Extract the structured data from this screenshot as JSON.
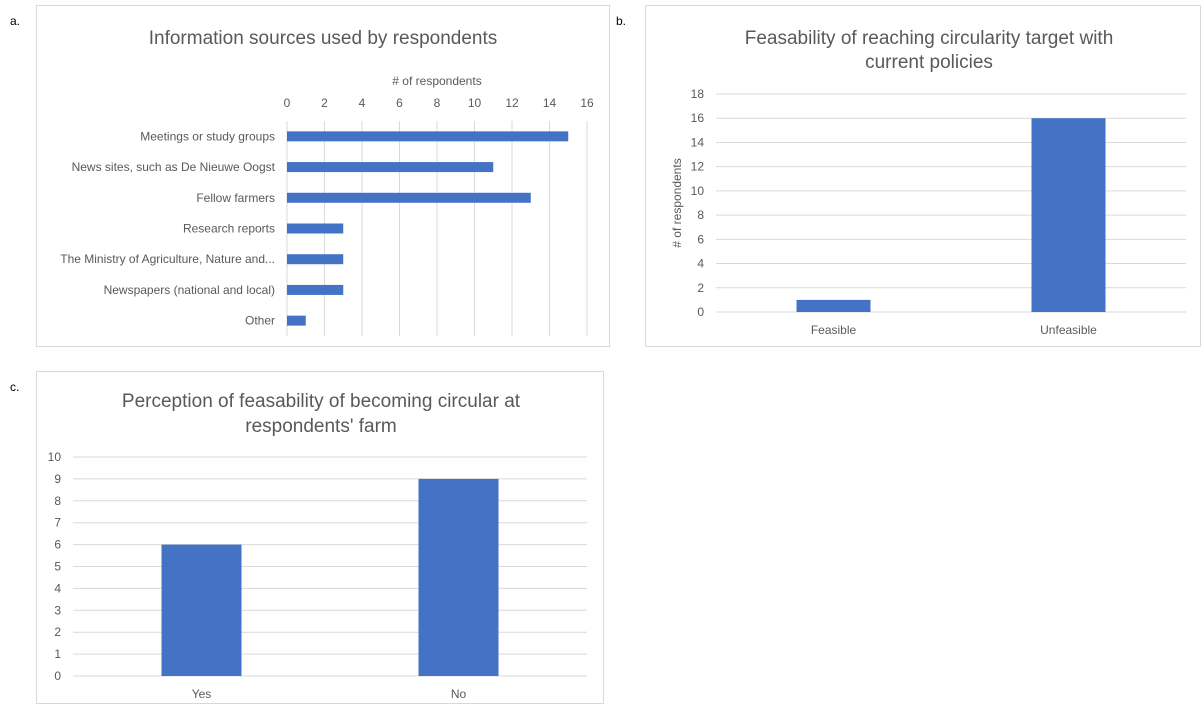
{
  "panels": {
    "a": {
      "label": "a."
    },
    "b": {
      "label": "b."
    },
    "c": {
      "label": "c."
    }
  },
  "colors": {
    "bar": "#4472c4",
    "grid": "#d9d9d9",
    "frame": "#d9d9d9",
    "text": "#595959"
  },
  "chart_data": [
    {
      "type": "bar",
      "orientation": "horizontal",
      "title": "Information sources used by respondents",
      "xlabel": "# of respondents",
      "ylabel": "",
      "xaxis_position": "top",
      "categories": [
        "Meetings or study groups",
        "News sites, such as De Nieuwe Oogst",
        "Fellow farmers",
        "Research reports",
        "The Ministry of Agriculture, Nature and...",
        "Newspapers (national and local)",
        "Other"
      ],
      "values": [
        15,
        11,
        13,
        3,
        3,
        3,
        1
      ],
      "xlim": [
        0,
        16
      ],
      "ticks": [
        0,
        2,
        4,
        6,
        8,
        10,
        12,
        14,
        16
      ],
      "grid": true
    },
    {
      "type": "bar",
      "orientation": "vertical",
      "title": "Feasability of reaching circularity target with current policies",
      "title_lines": [
        "Feasability of reaching circularity target with",
        "current policies"
      ],
      "xlabel": "",
      "ylabel": "# of respondents",
      "categories": [
        "Feasible",
        "Unfeasible"
      ],
      "values": [
        1,
        16
      ],
      "ylim": [
        0,
        18
      ],
      "ticks": [
        0,
        2,
        4,
        6,
        8,
        10,
        12,
        14,
        16,
        18
      ],
      "grid": true
    },
    {
      "type": "bar",
      "orientation": "vertical",
      "title": "Perception of feasability of becoming circular at respondents' farm",
      "title_lines": [
        "Perception of feasability of becoming circular at",
        "respondents' farm"
      ],
      "xlabel": "",
      "ylabel": "",
      "categories": [
        "Yes",
        "No"
      ],
      "values": [
        6,
        9
      ],
      "ylim": [
        0,
        10
      ],
      "ticks": [
        0,
        1,
        2,
        3,
        4,
        5,
        6,
        7,
        8,
        9,
        10
      ],
      "grid": true
    }
  ]
}
